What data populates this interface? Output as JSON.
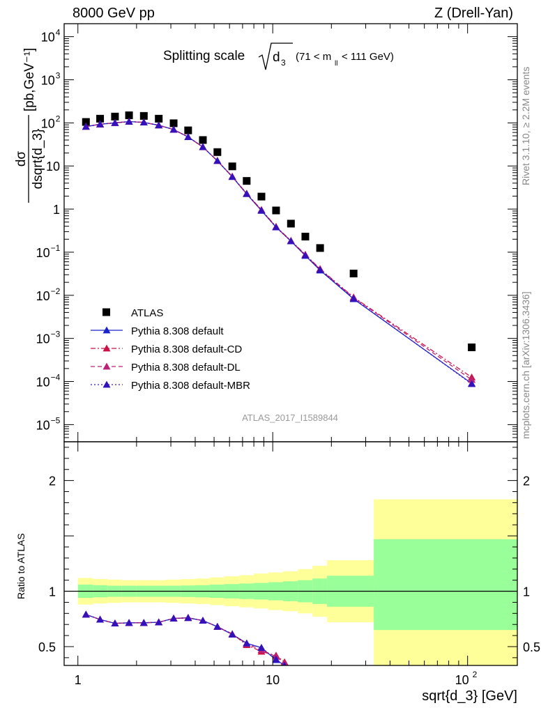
{
  "header": {
    "left": "8000 GeV pp",
    "right": "Z (Drell-Yan)"
  },
  "side_text": {
    "top": "Rivet 3.1.10, ≥ 2.2M events",
    "bottom": "mcplots.cern.ch [arXiv:1306.3436]"
  },
  "chart_data": [
    {
      "type": "scatter",
      "title": "Splitting scale √d₃ (71 < m_ll < 111 GeV)",
      "title_main": "Splitting scale",
      "title_sqrt": "d",
      "title_sub": "3",
      "title_range": "(71 < m",
      "title_range_sub": "ll",
      "title_range_end": "< 111 GeV)",
      "ylabel_top": "dσ",
      "ylabel_bottom": "dsqrt{d_3}",
      "ylabel_unit": "[pb,GeV⁻¹]",
      "xlabel": "sqrt{d_3} [GeV]",
      "x_scale": "log",
      "y_scale": "log",
      "xlim": [
        0.85,
        180
      ],
      "ylim": [
        4e-06,
        20000.0
      ],
      "legend_position": "lower-left",
      "watermark": "ATLAS_2017_I1589844",
      "x_ticks": [
        "1",
        "10",
        "10²"
      ],
      "y_ticks": [
        "10⁴",
        "10³",
        "10²",
        "10",
        "1",
        "10⁻¹",
        "10⁻²",
        "10⁻³",
        "10⁻⁴",
        "10⁻⁵"
      ],
      "x": [
        1.1,
        1.3,
        1.55,
        1.83,
        2.18,
        2.6,
        3.1,
        3.68,
        4.38,
        5.2,
        6.2,
        7.35,
        8.75,
        10.4,
        12.4,
        14.7,
        17.5,
        26,
        105
      ],
      "series": [
        {
          "name": "ATLAS",
          "color": "#000000",
          "marker": "square",
          "values": [
            105,
            125,
            140,
            150,
            145,
            125,
            98,
            67,
            40,
            21,
            9.8,
            4.5,
            1.95,
            0.93,
            0.46,
            0.23,
            0.125,
            0.032,
            0.00062
          ]
        },
        {
          "name": "Pythia 8.308 default",
          "color": "#1a22cc",
          "marker": "triangle",
          "style": "solid",
          "values": [
            82,
            93,
            100,
            107,
            103,
            88,
            70,
            47,
            27.5,
            13.2,
            5.6,
            2.25,
            0.92,
            0.38,
            0.18,
            0.083,
            0.038,
            0.0082,
            9e-05
          ]
        },
        {
          "name": "Pythia 8.308 default-CD",
          "color": "#cc1144",
          "marker": "triangle",
          "style": "dashdot",
          "values": [
            82,
            93,
            100,
            107,
            103,
            88,
            70,
            47,
            27.5,
            13.2,
            5.7,
            2.3,
            0.96,
            0.39,
            0.185,
            0.088,
            0.041,
            0.009,
            0.000125
          ]
        },
        {
          "name": "Pythia 8.308 default-DL",
          "color": "#bb2277",
          "marker": "triangle",
          "style": "dashed",
          "values": [
            82,
            93,
            100,
            107,
            103,
            88,
            70,
            47,
            27.5,
            13.2,
            5.65,
            2.28,
            0.94,
            0.385,
            0.183,
            0.086,
            0.04,
            0.0088,
            0.00011
          ]
        },
        {
          "name": "Pythia 8.308 default-MBR",
          "color": "#3311bb",
          "marker": "triangle",
          "style": "dotted",
          "values": [
            82,
            93,
            100,
            107,
            103,
            88,
            70,
            47,
            27.5,
            13.2,
            5.6,
            2.25,
            0.93,
            0.38,
            0.18,
            0.084,
            0.039,
            0.0084,
            8.8e-05
          ]
        }
      ]
    },
    {
      "type": "line",
      "ylabel": "Ratio to ATLAS",
      "xlabel": "sqrt{d_3} [GeV]",
      "x_scale": "log",
      "xlim": [
        0.85,
        180
      ],
      "ylim": [
        0.33,
        2.35
      ],
      "y_ticks": [
        "2",
        "1",
        "0.5"
      ],
      "reference_line": 1,
      "bands": {
        "edges": [
          1.0,
          1.2,
          1.42,
          1.68,
          2.0,
          2.38,
          2.83,
          3.37,
          4.0,
          4.76,
          5.66,
          6.73,
          8.0,
          9.51,
          11.3,
          13.45,
          16.0,
          19.0,
          33.0,
          180.0
        ],
        "stat_sys_low": [
          0.88,
          0.89,
          0.895,
          0.9,
          0.9,
          0.9,
          0.895,
          0.89,
          0.885,
          0.875,
          0.865,
          0.855,
          0.845,
          0.83,
          0.82,
          0.8,
          0.77,
          0.72,
          0.33
        ],
        "stat_sys_high": [
          1.12,
          1.11,
          1.105,
          1.1,
          1.1,
          1.1,
          1.105,
          1.11,
          1.115,
          1.125,
          1.135,
          1.145,
          1.16,
          1.17,
          1.18,
          1.2,
          1.23,
          1.28,
          1.83
        ],
        "stat_low": [
          0.94,
          0.945,
          0.95,
          0.95,
          0.95,
          0.95,
          0.95,
          0.948,
          0.945,
          0.94,
          0.935,
          0.93,
          0.925,
          0.918,
          0.91,
          0.9,
          0.885,
          0.86,
          0.65
        ],
        "stat_high": [
          1.06,
          1.055,
          1.05,
          1.05,
          1.05,
          1.05,
          1.05,
          1.052,
          1.055,
          1.06,
          1.065,
          1.07,
          1.075,
          1.082,
          1.09,
          1.1,
          1.115,
          1.14,
          1.47
        ],
        "stat_sys_color": "#ffff99",
        "stat_color": "#99ff99"
      },
      "x": [
        1.1,
        1.3,
        1.55,
        1.83,
        2.18,
        2.6,
        3.1,
        3.68,
        4.38,
        5.2,
        6.2,
        7.35,
        8.75,
        10.4,
        11.5
      ],
      "series": [
        {
          "name": "Pythia 8.308 default",
          "color": "#1a22cc",
          "values": [
            0.79,
            0.745,
            0.71,
            0.715,
            0.715,
            0.72,
            0.755,
            0.76,
            0.735,
            0.68,
            0.61,
            0.53,
            0.49,
            0.38,
            0.33
          ]
        },
        {
          "name": "Pythia 8.308 default-CD",
          "color": "#cc1144",
          "values": [
            0.79,
            0.745,
            0.71,
            0.715,
            0.715,
            0.72,
            0.755,
            0.76,
            0.735,
            0.68,
            0.615,
            0.515,
            0.455,
            0.42,
            0.36
          ]
        },
        {
          "name": "Pythia 8.308 default-DL",
          "color": "#bb2277",
          "values": [
            0.79,
            0.745,
            0.71,
            0.715,
            0.715,
            0.72,
            0.755,
            0.76,
            0.735,
            0.68,
            0.612,
            0.525,
            0.47,
            0.41,
            0.35
          ]
        },
        {
          "name": "Pythia 8.308 default-MBR",
          "color": "#3311bb",
          "values": [
            0.79,
            0.745,
            0.71,
            0.715,
            0.715,
            0.72,
            0.755,
            0.76,
            0.735,
            0.68,
            0.61,
            0.53,
            0.49,
            0.385,
            0.33
          ]
        }
      ]
    }
  ]
}
